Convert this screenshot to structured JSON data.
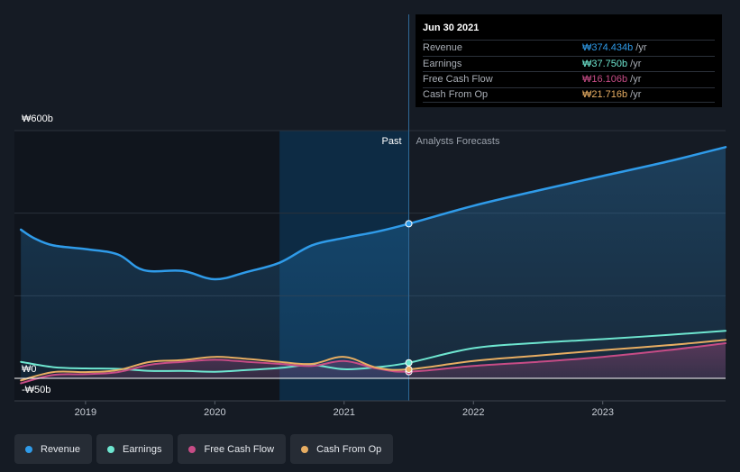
{
  "colors": {
    "revenue": "#2f9be9",
    "earnings": "#6ee6d0",
    "free_cash_flow": "#c74c86",
    "cash_from_op": "#e7ad62",
    "past_band": "#0d2b44",
    "background": "#151b24"
  },
  "tooltip": {
    "date": "Jun 30 2021",
    "rows": [
      {
        "name": "Revenue",
        "value": "₩374.434b",
        "unit": "/yr",
        "color": "#2f9be9"
      },
      {
        "name": "Earnings",
        "value": "₩37.750b",
        "unit": "/yr",
        "color": "#6ee6d0"
      },
      {
        "name": "Free Cash Flow",
        "value": "₩16.106b",
        "unit": "/yr",
        "color": "#c74c86"
      },
      {
        "name": "Cash From Op",
        "value": "₩21.716b",
        "unit": "/yr",
        "color": "#e7ad62"
      }
    ]
  },
  "legend": [
    {
      "label": "Revenue",
      "color": "#2f9be9"
    },
    {
      "label": "Earnings",
      "color": "#6ee6d0"
    },
    {
      "label": "Free Cash Flow",
      "color": "#c74c86"
    },
    {
      "label": "Cash From Op",
      "color": "#e7ad62"
    }
  ],
  "chart_data": {
    "type": "line",
    "title": "",
    "xlabel": "",
    "ylabel": "",
    "ylim": [
      -50,
      600
    ],
    "xlim": [
      2018.45,
      2023.95
    ],
    "y_tick_labels": [
      {
        "value": 600,
        "label": "₩600b"
      },
      {
        "value": 0,
        "label": "₩0"
      },
      {
        "value": -50,
        "label": "-₩50b"
      }
    ],
    "x_ticks": [
      {
        "value": 2019,
        "label": "2019"
      },
      {
        "value": 2020,
        "label": "2020"
      },
      {
        "value": 2021,
        "label": "2021"
      },
      {
        "value": 2022,
        "label": "2022"
      },
      {
        "value": 2023,
        "label": "2023"
      }
    ],
    "annotations": {
      "past_label": "Past",
      "forecast_label": "Analysts Forecasts",
      "past_band_start": 2020.5,
      "divider_x": 2021.5
    },
    "highlight": {
      "x": 2021.5,
      "revenue": 374.434,
      "earnings": 37.75,
      "free_cash_flow": 16.106,
      "cash_from_op": 21.716
    },
    "series": [
      {
        "name": "Revenue",
        "key": "revenue",
        "area": true,
        "points": [
          [
            2018.5,
            360
          ],
          [
            2018.6,
            340
          ],
          [
            2018.75,
            322
          ],
          [
            2019.0,
            313
          ],
          [
            2019.25,
            300
          ],
          [
            2019.45,
            262
          ],
          [
            2019.75,
            260
          ],
          [
            2020.0,
            240
          ],
          [
            2020.25,
            258
          ],
          [
            2020.5,
            280
          ],
          [
            2020.75,
            322
          ],
          [
            2021.0,
            340
          ],
          [
            2021.25,
            355
          ],
          [
            2021.5,
            374.434
          ],
          [
            2022.0,
            418
          ],
          [
            2022.5,
            455
          ],
          [
            2023.0,
            490
          ],
          [
            2023.5,
            525
          ],
          [
            2023.95,
            560
          ]
        ]
      },
      {
        "name": "Earnings",
        "key": "earnings",
        "area": false,
        "points": [
          [
            2018.5,
            40
          ],
          [
            2018.75,
            27
          ],
          [
            2019.0,
            24
          ],
          [
            2019.25,
            23
          ],
          [
            2019.5,
            18
          ],
          [
            2019.75,
            18
          ],
          [
            2020.0,
            16
          ],
          [
            2020.25,
            20
          ],
          [
            2020.5,
            25
          ],
          [
            2020.75,
            32
          ],
          [
            2021.0,
            22
          ],
          [
            2021.25,
            27
          ],
          [
            2021.5,
            37.75
          ],
          [
            2022.0,
            73
          ],
          [
            2022.5,
            86
          ],
          [
            2023.0,
            95
          ],
          [
            2023.5,
            105
          ],
          [
            2023.95,
            115
          ]
        ]
      },
      {
        "name": "Free Cash Flow",
        "key": "free_cash_flow",
        "area": true,
        "points": [
          [
            2018.5,
            -12
          ],
          [
            2018.75,
            8
          ],
          [
            2019.0,
            10
          ],
          [
            2019.25,
            15
          ],
          [
            2019.5,
            33
          ],
          [
            2019.75,
            40
          ],
          [
            2020.0,
            45
          ],
          [
            2020.25,
            40
          ],
          [
            2020.5,
            35
          ],
          [
            2020.75,
            30
          ],
          [
            2021.0,
            42
          ],
          [
            2021.25,
            24
          ],
          [
            2021.5,
            16.106
          ],
          [
            2022.0,
            30
          ],
          [
            2022.5,
            40
          ],
          [
            2023.0,
            52
          ],
          [
            2023.5,
            68
          ],
          [
            2023.95,
            85
          ]
        ]
      },
      {
        "name": "Cash From Op",
        "key": "cash_from_op",
        "area": false,
        "points": [
          [
            2018.5,
            -5
          ],
          [
            2018.75,
            15
          ],
          [
            2019.0,
            15
          ],
          [
            2019.25,
            20
          ],
          [
            2019.5,
            40
          ],
          [
            2019.75,
            44
          ],
          [
            2020.0,
            52
          ],
          [
            2020.25,
            47
          ],
          [
            2020.5,
            40
          ],
          [
            2020.75,
            35
          ],
          [
            2021.0,
            52
          ],
          [
            2021.25,
            26
          ],
          [
            2021.5,
            21.716
          ],
          [
            2022.0,
            42
          ],
          [
            2022.5,
            55
          ],
          [
            2023.0,
            68
          ],
          [
            2023.5,
            80
          ],
          [
            2023.95,
            93
          ]
        ]
      }
    ]
  }
}
